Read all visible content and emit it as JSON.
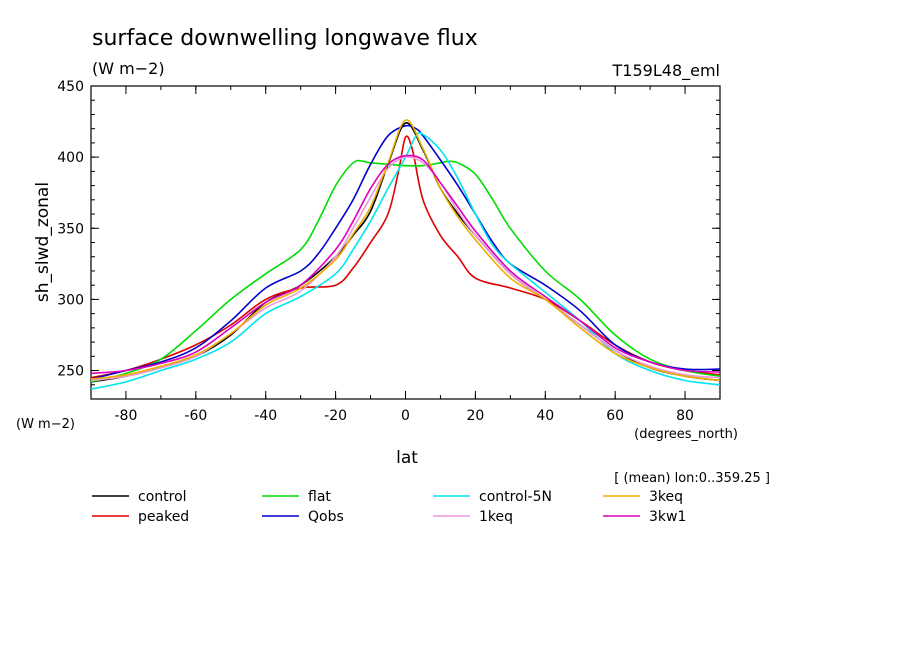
{
  "chart_data": {
    "type": "line",
    "title": "surface downwelling longwave flux",
    "subtitle": "(W m−2)",
    "experiment": "T159L48_eml",
    "ylabel": "sh_slwd_zonal",
    "yunits": "(W m−2)",
    "xlabel": "lat",
    "xunits": "(degrees_north)",
    "averaging_note": "[ (mean) lon:0..359.25 ]",
    "xlim": [
      -90,
      90
    ],
    "ylim": [
      230,
      450
    ],
    "xticks": [
      -80,
      -60,
      -40,
      -20,
      0,
      20,
      40,
      60,
      80
    ],
    "yticks": [
      250,
      300,
      350,
      400,
      450
    ],
    "grid": false,
    "legend_position": "bottom",
    "series": [
      {
        "name": "control",
        "color": "#000000",
        "x": [
          -90,
          -80,
          -70,
          -60,
          -50,
          -40,
          -30,
          -20,
          -15,
          -10,
          -5,
          0,
          5,
          10,
          15,
          20,
          30,
          40,
          50,
          60,
          70,
          80,
          90
        ],
        "y": [
          242,
          246,
          252,
          260,
          275,
          298,
          310,
          330,
          345,
          362,
          395,
          424,
          405,
          378,
          360,
          345,
          318,
          300,
          282,
          264,
          252,
          246,
          243
        ]
      },
      {
        "name": "peaked",
        "color": "#e00000",
        "x": [
          -90,
          -80,
          -70,
          -60,
          -50,
          -40,
          -30,
          -20,
          -15,
          -10,
          -5,
          -2,
          0,
          2,
          5,
          10,
          15,
          20,
          30,
          40,
          50,
          60,
          70,
          80,
          90
        ],
        "y": [
          245,
          250,
          258,
          268,
          282,
          300,
          308,
          310,
          322,
          340,
          360,
          390,
          414,
          405,
          370,
          345,
          330,
          315,
          308,
          300,
          285,
          268,
          256,
          250,
          247
        ]
      },
      {
        "name": "flat",
        "color": "#00dd00",
        "x": [
          -90,
          -80,
          -70,
          -60,
          -50,
          -40,
          -30,
          -25,
          -20,
          -15,
          -12,
          -10,
          -5,
          0,
          5,
          10,
          12,
          15,
          20,
          25,
          30,
          40,
          50,
          60,
          70,
          80,
          90
        ],
        "y": [
          242,
          248,
          258,
          278,
          300,
          318,
          335,
          355,
          380,
          396,
          397,
          396,
          395,
          394,
          394,
          396,
          397,
          396,
          388,
          370,
          350,
          320,
          300,
          275,
          258,
          250,
          246
        ]
      },
      {
        "name": "Qobs",
        "color": "#0000cc",
        "x": [
          -90,
          -80,
          -70,
          -60,
          -50,
          -40,
          -30,
          -25,
          -20,
          -15,
          -10,
          -5,
          0,
          3,
          5,
          10,
          15,
          20,
          25,
          30,
          40,
          50,
          60,
          70,
          80,
          90
        ],
        "y": [
          244,
          250,
          256,
          266,
          285,
          308,
          320,
          332,
          350,
          370,
          395,
          415,
          422,
          420,
          415,
          398,
          380,
          360,
          340,
          325,
          310,
          292,
          268,
          256,
          251,
          251
        ]
      },
      {
        "name": "control-5N",
        "color": "#00e5ee",
        "x": [
          -90,
          -80,
          -70,
          -60,
          -50,
          -40,
          -30,
          -20,
          -15,
          -10,
          -5,
          0,
          3,
          5,
          10,
          15,
          20,
          25,
          30,
          40,
          50,
          60,
          70,
          80,
          90
        ],
        "y": [
          237,
          242,
          250,
          258,
          270,
          290,
          302,
          318,
          335,
          355,
          378,
          400,
          415,
          416,
          405,
          385,
          360,
          338,
          325,
          305,
          285,
          262,
          250,
          243,
          240
        ]
      },
      {
        "name": "1keq",
        "color": "#ee99dd",
        "x": [
          -90,
          -80,
          -70,
          -60,
          -50,
          -40,
          -30,
          -20,
          -15,
          -10,
          -5,
          0,
          5,
          10,
          15,
          20,
          30,
          40,
          50,
          60,
          70,
          80,
          90
        ],
        "y": [
          243,
          246,
          252,
          260,
          276,
          294,
          306,
          330,
          350,
          372,
          392,
          400,
          396,
          382,
          362,
          345,
          318,
          300,
          282,
          264,
          253,
          247,
          245
        ]
      },
      {
        "name": "3keq",
        "color": "#eeb000",
        "x": [
          -90,
          -80,
          -70,
          -60,
          -50,
          -40,
          -30,
          -20,
          -15,
          -10,
          -5,
          0,
          5,
          10,
          15,
          20,
          30,
          40,
          50,
          60,
          70,
          80,
          90
        ],
        "y": [
          244,
          247,
          253,
          261,
          276,
          296,
          308,
          328,
          346,
          365,
          396,
          426,
          406,
          378,
          358,
          342,
          315,
          300,
          280,
          262,
          252,
          246,
          243
        ]
      },
      {
        "name": "3kw1",
        "color": "#dd00bb",
        "x": [
          -90,
          -80,
          -70,
          -60,
          -50,
          -40,
          -30,
          -20,
          -15,
          -10,
          -5,
          0,
          5,
          10,
          15,
          20,
          30,
          40,
          50,
          60,
          70,
          80,
          90
        ],
        "y": [
          248,
          250,
          255,
          263,
          280,
          298,
          310,
          335,
          355,
          378,
          395,
          401,
          398,
          382,
          365,
          348,
          320,
          302,
          285,
          266,
          256,
          250,
          249
        ]
      }
    ]
  }
}
